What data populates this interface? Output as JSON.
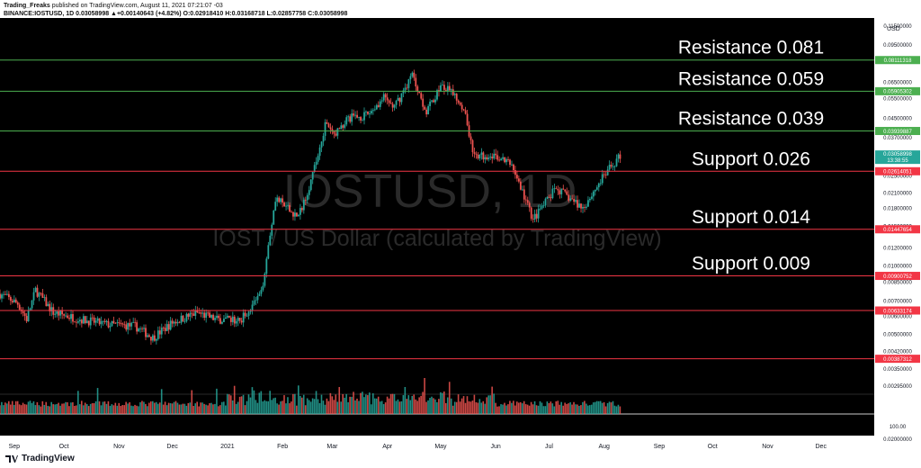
{
  "header": {
    "author": "Trading_Freaks",
    "published_text": "published on TradingView.com, August 11, 2021 07:21:07 -03",
    "symbol_line": "BINANCE:IOSTUSD, 1D 0.03058998 ▲+0.00140643 (+4.82%) O:0.02918410 H:0.03168718 L:0.02857758 C:0.03058998"
  },
  "watermark": {
    "symbol": "IOSTUSD, 1D",
    "description": "IOST / US Dollar (calculated by TradingView)"
  },
  "footer": {
    "brand": "TradingView"
  },
  "colors": {
    "background": "#000000",
    "up": "#26a69a",
    "down": "#ef5350",
    "resistance": "#4caf50",
    "support": "#f23645",
    "last_price": "#26a69a"
  },
  "chart_data": {
    "type": "candlestick",
    "scale": "log",
    "y_axis": {
      "unit": "USD",
      "ticks": [
        "0.11500000",
        "0.09500000",
        "0.06500000",
        "0.05500000",
        "0.04500000",
        "0.03700000",
        "0.02500000",
        "0.02100000",
        "0.01800000",
        "0.01500000",
        "0.01200000",
        "0.01000000",
        "0.00850000",
        "0.00700000",
        "0.00600000",
        "0.00500000",
        "0.00420000",
        "0.00350000",
        "0.00295000"
      ],
      "ylim": [
        0.0027,
        0.12
      ]
    },
    "volume_axis": {
      "ticks": [
        "100.00",
        "0.02000000"
      ]
    },
    "x_axis": {
      "ticks": [
        "Sep",
        "Oct",
        "Nov",
        "Dec",
        "2021",
        "Feb",
        "Mar",
        "Apr",
        "May",
        "Jun",
        "Jul",
        "Aug",
        "Sep",
        "Oct",
        "Nov",
        "Dec"
      ],
      "xlim": [
        "2020-08-26",
        "2021-12-31"
      ]
    },
    "last_price": {
      "value": "0.03058998",
      "countdown": "13:38:55",
      "value_num": 0.03058998
    },
    "levels": [
      {
        "kind": "resistance",
        "label": "Resistance 0.081",
        "value": 0.08111318,
        "tag": "0.08111318"
      },
      {
        "kind": "resistance",
        "label": "Resistance 0.059",
        "value": 0.05905302,
        "tag": "0.05905302"
      },
      {
        "kind": "resistance",
        "label": "Resistance 0.039",
        "value": 0.03939887,
        "tag": "0.03939887"
      },
      {
        "kind": "support",
        "label": "Support 0.026",
        "value": 0.02614051,
        "tag": "0.02614051"
      },
      {
        "kind": "support",
        "label": "Support 0.014",
        "value": 0.01447654,
        "tag": "0.01447654"
      },
      {
        "kind": "support",
        "label": "Support 0.009",
        "value": 0.00900752,
        "tag": "0.00900752"
      },
      {
        "kind": "support",
        "label": "",
        "value": 0.00633174,
        "tag": "0.00633174"
      },
      {
        "kind": "support",
        "label": "",
        "value": 0.00387312,
        "tag": "0.00387312"
      }
    ],
    "price_path": [
      [
        "2020-08-26",
        0.0075
      ],
      [
        "2020-09-05",
        0.0068
      ],
      [
        "2020-09-10",
        0.0058
      ],
      [
        "2020-09-15",
        0.0078
      ],
      [
        "2020-09-25",
        0.0062
      ],
      [
        "2020-10-10",
        0.0058
      ],
      [
        "2020-10-25",
        0.0055
      ],
      [
        "2020-11-10",
        0.0054
      ],
      [
        "2020-11-20",
        0.0048
      ],
      [
        "2020-12-01",
        0.0056
      ],
      [
        "2020-12-15",
        0.0062
      ],
      [
        "2020-12-25",
        0.0058
      ],
      [
        "2021-01-08",
        0.0057
      ],
      [
        "2021-01-20",
        0.0075
      ],
      [
        "2021-01-28",
        0.02
      ],
      [
        "2021-02-05",
        0.0175
      ],
      [
        "2021-02-10",
        0.0165
      ],
      [
        "2021-02-18",
        0.025
      ],
      [
        "2021-02-25",
        0.042
      ],
      [
        "2021-03-02",
        0.038
      ],
      [
        "2021-03-10",
        0.045
      ],
      [
        "2021-03-20",
        0.046
      ],
      [
        "2021-03-30",
        0.055
      ],
      [
        "2021-04-05",
        0.05
      ],
      [
        "2021-04-15",
        0.07
      ],
      [
        "2021-04-23",
        0.048
      ],
      [
        "2021-05-01",
        0.062
      ],
      [
        "2021-05-08",
        0.058
      ],
      [
        "2021-05-14",
        0.05
      ],
      [
        "2021-05-20",
        0.03
      ],
      [
        "2021-05-30",
        0.031
      ],
      [
        "2021-06-10",
        0.028
      ],
      [
        "2021-06-22",
        0.016
      ],
      [
        "2021-07-05",
        0.022
      ],
      [
        "2021-07-20",
        0.018
      ],
      [
        "2021-08-01",
        0.025
      ],
      [
        "2021-08-10",
        0.0306
      ]
    ]
  }
}
